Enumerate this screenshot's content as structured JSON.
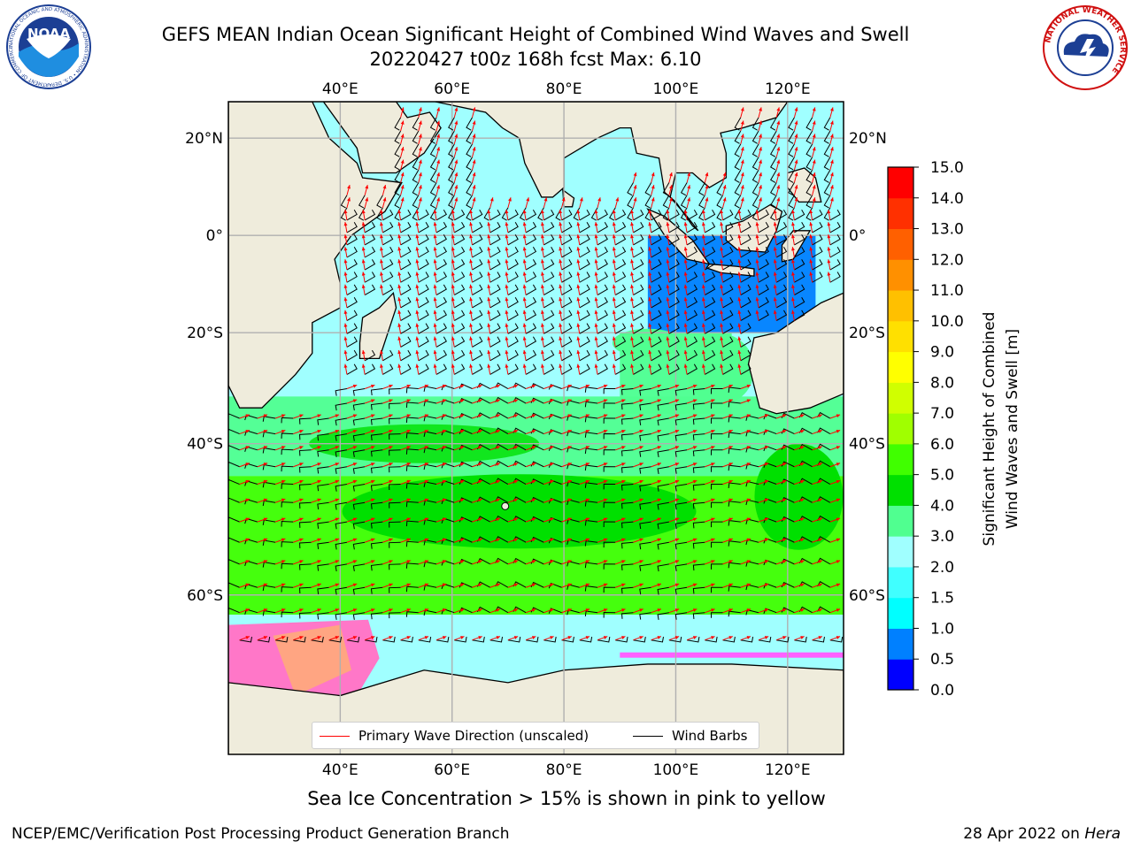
{
  "header": {
    "title_line1": "GEFS MEAN Indian Ocean Significant Height of Combined Wind Waves and Swell",
    "title_line2": "20220427 t00z 168h fcst   Max: 6.10"
  },
  "logos": {
    "left": "NOAA",
    "left_ring_text": "NATIONAL OCEANIC AND ATMOSPHERIC ADMINISTRATION • U.S. DEPARTMENT OF COMMERCE",
    "right_ring_text": "NATIONAL WEATHER SERVICE"
  },
  "map": {
    "lon_labels": [
      "40°E",
      "60°E",
      "80°E",
      "100°E",
      "120°E"
    ],
    "lat_labels": [
      "20°N",
      "0°",
      "20°S",
      "40°S",
      "60°S"
    ],
    "lon_range": [
      20,
      130
    ],
    "lat_range": [
      -73,
      27
    ],
    "grid": true,
    "colors": {
      "land": "#efecdc",
      "coast": "#000000",
      "wave_arrow": "#ff0000",
      "wind_barb": "#000000",
      "gridline": "#b0b0b0"
    }
  },
  "legend": {
    "wave_label": "Primary Wave Direction (unscaled)",
    "barb_label": "Wind Barbs"
  },
  "colorbar": {
    "label_line1": "Significant Height of Combined",
    "label_line2": "Wind Waves and Swell [m]",
    "ticks": [
      "0.0",
      "0.5",
      "1.0",
      "1.5",
      "2.0",
      "3.0",
      "4.0",
      "5.0",
      "6.0",
      "7.0",
      "8.0",
      "9.0",
      "10.0",
      "11.0",
      "12.0",
      "13.0",
      "14.0",
      "15.0"
    ],
    "colors": [
      "#0000ff",
      "#0080ff",
      "#00ffff",
      "#40ffff",
      "#a0ffff",
      "#50ff90",
      "#00e000",
      "#40ff00",
      "#a0ff00",
      "#d0ff00",
      "#ffff00",
      "#ffe000",
      "#ffc000",
      "#ff9000",
      "#ff6000",
      "#ff3000",
      "#ff0000"
    ]
  },
  "chart_data": {
    "type": "heatmap",
    "title": "GEFS MEAN Indian Ocean Significant Height of Combined Wind Waves and Swell",
    "variable": "Significant Height of Combined Wind Waves and Swell [m]",
    "max": 6.1,
    "value_range": [
      0.0,
      15.0
    ],
    "regions": [
      {
        "lat": [
          10,
          25
        ],
        "lon": [
          45,
          100
        ],
        "value": 2.0
      },
      {
        "lat": [
          -20,
          10
        ],
        "lon": [
          45,
          100
        ],
        "value": 2.0
      },
      {
        "lat": [
          -20,
          0
        ],
        "lon": [
          95,
          125
        ],
        "value": 0.5
      },
      {
        "lat": [
          -35,
          -20
        ],
        "lon": [
          90,
          110
        ],
        "value": 3.5
      },
      {
        "lat": [
          -45,
          -32
        ],
        "lon": [
          20,
          130
        ],
        "value": 3.5
      },
      {
        "lat": [
          -62,
          -45
        ],
        "lon": [
          20,
          130
        ],
        "value": 5.0
      },
      {
        "lat": [
          -66,
          -62
        ],
        "lon": [
          20,
          130
        ],
        "value": 2.5
      }
    ]
  },
  "footer": {
    "note": "Sea Ice Concentration > 15% is shown in pink to yellow",
    "left": "NCEP/EMC/Verification Post Processing Product Generation Branch",
    "right_date": "28 Apr 2022 on",
    "right_machine": "Hera"
  }
}
